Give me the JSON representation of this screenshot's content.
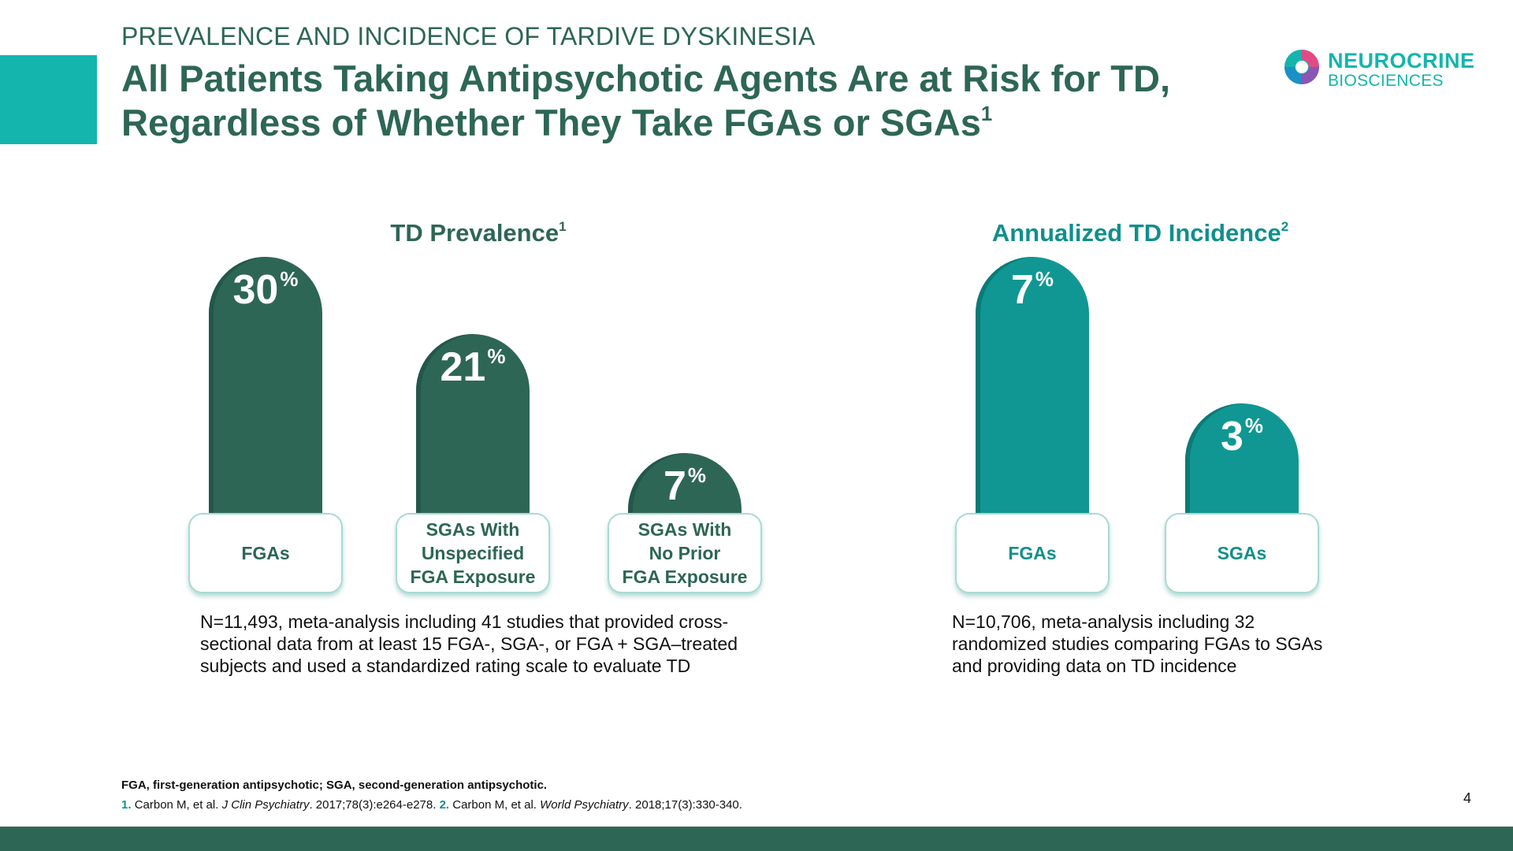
{
  "header": {
    "kicker": "PREVALENCE AND INCIDENCE OF TARDIVE DYSKINESIA",
    "title_line1": "All Patients Taking Antipsychotic Agents Are at Risk for TD,",
    "title_line2": "Regardless of Whether They Take FGAs or SGAs",
    "title_sup": "1"
  },
  "logo": {
    "line1": "NEUROCRINE",
    "line2": "BIOSCIENCES"
  },
  "colors": {
    "dark_green": "#2e6656",
    "teal": "#109793",
    "accent": "#13b5ad"
  },
  "chart_data": [
    {
      "type": "bar",
      "title": "TD Prevalence",
      "title_sup": "1",
      "categories": [
        "FGAs",
        "SGAs With\nUnspecified\nFGA Exposure",
        "SGAs With\nNo Prior\nFGA Exposure"
      ],
      "values": [
        30,
        21,
        7
      ],
      "value_labels": [
        "30",
        "21",
        "7"
      ],
      "unit": "%",
      "ylim": [
        0,
        30
      ],
      "note": "N=11,493, meta-analysis including 41 studies that provided cross-sectional data from at least 15 FGA-, SGA-, or FGA + SGA–treated subjects and used a standardized rating scale to evaluate TD"
    },
    {
      "type": "bar",
      "title": "Annualized TD Incidence",
      "title_sup": "2",
      "categories": [
        "FGAs",
        "SGAs"
      ],
      "values": [
        7,
        3
      ],
      "value_labels": [
        "7",
        "3"
      ],
      "unit": "%",
      "ylim": [
        0,
        7
      ],
      "note": "N=10,706, meta-analysis including 32 randomized studies comparing FGAs to SGAs and providing data on TD incidence"
    }
  ],
  "footer": {
    "abbreviations": "FGA, first-generation antipsychotic; SGA, second-generation antipsychotic.",
    "ref1_num": "1.",
    "ref1_a": "Carbon M, et al. ",
    "ref1_journal": "J Clin Psychiatry",
    "ref1_b": ". 2017;78(3):e264-e278. ",
    "ref2_num": "2.",
    "ref2_a": "Carbon M, et al. ",
    "ref2_journal": "World Psychiatry",
    "ref2_b": ". 2018;17(3):330-340.",
    "page_number": "4"
  }
}
